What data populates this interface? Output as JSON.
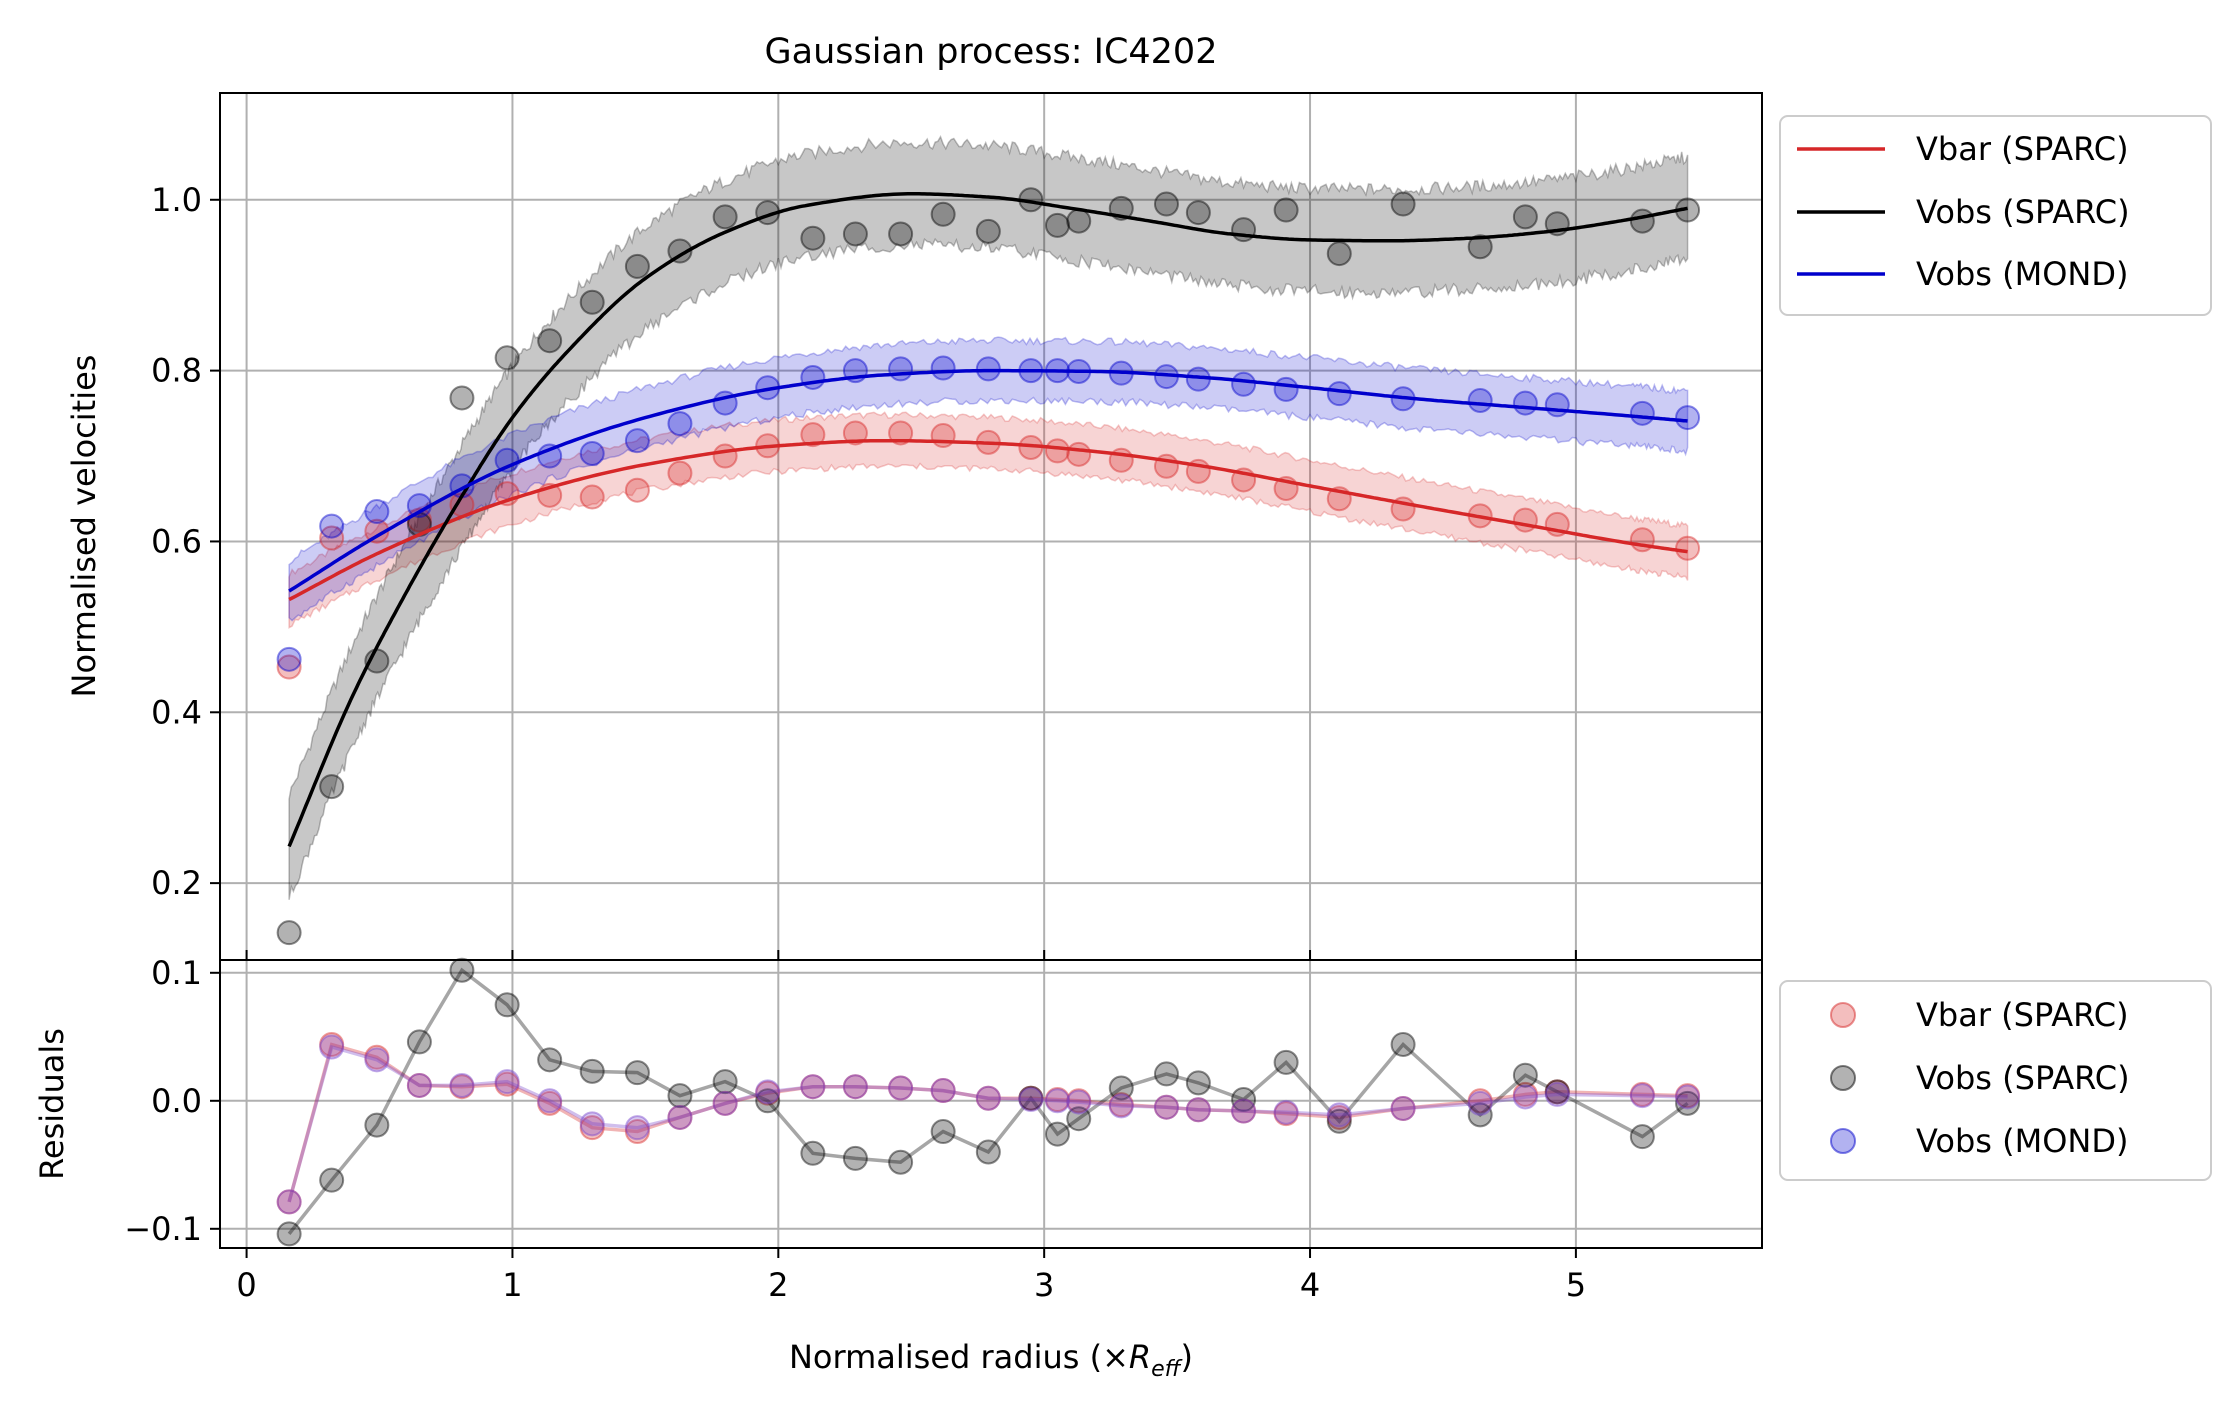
{
  "chart_data": [
    {
      "type": "scatter",
      "title": "Gaussian process: IC4202",
      "xlabel_prefix": "Normalised radius (×",
      "xlabel_var": "R",
      "xlabel_sub": "eff",
      "xlabel_suffix": ")",
      "ylabel": "Normalised velocities",
      "xlim": [
        -0.1,
        5.7
      ],
      "ylim": [
        0.11,
        1.125
      ],
      "xticks": [
        0,
        1,
        2,
        3,
        4,
        5
      ],
      "xtick_labels": [
        "0",
        "1",
        "2",
        "3",
        "4",
        "5"
      ],
      "yticks": [
        0.2,
        0.4,
        0.6,
        0.8,
        1.0
      ],
      "ytick_labels": [
        "0.2",
        "0.4",
        "0.6",
        "0.8",
        "1.0"
      ],
      "grid": true,
      "legend": {
        "placement": "outside-top-right",
        "entries": [
          "Vbar (SPARC)",
          "Vobs (SPARC)",
          "Vobs (MOND)"
        ]
      },
      "x": [
        0.16,
        0.32,
        0.49,
        0.65,
        0.81,
        0.98,
        1.14,
        1.3,
        1.47,
        1.63,
        1.8,
        1.96,
        2.13,
        2.29,
        2.46,
        2.62,
        2.79,
        2.95,
        3.05,
        3.13,
        3.29,
        3.46,
        3.58,
        3.75,
        3.91,
        4.11,
        4.35,
        4.64,
        4.81,
        4.93,
        5.25,
        5.42
      ],
      "series": [
        {
          "name": "Vbar (SPARC)",
          "color": "#d62728",
          "points": [
            0.453,
            0.604,
            0.612,
            0.625,
            0.643,
            0.656,
            0.654,
            0.652,
            0.66,
            0.68,
            0.7,
            0.712,
            0.725,
            0.727,
            0.727,
            0.724,
            0.716,
            0.71,
            0.706,
            0.702,
            0.695,
            0.688,
            0.682,
            0.672,
            0.662,
            0.65,
            0.638,
            0.63,
            0.625,
            0.62,
            0.602,
            0.592
          ],
          "fit_x": [
            0.16,
            0.5,
            1.0,
            1.5,
            2.0,
            2.4,
            2.8,
            3.2,
            3.6,
            4.0,
            4.4,
            4.8,
            5.2,
            5.42
          ],
          "fit": [
            0.532,
            0.587,
            0.65,
            0.69,
            0.712,
            0.718,
            0.715,
            0.705,
            0.688,
            0.665,
            0.642,
            0.62,
            0.598,
            0.588
          ],
          "band": 0.03
        },
        {
          "name": "Vobs (SPARC)",
          "color": "#000000",
          "points": [
            0.142,
            0.313,
            0.46,
            0.62,
            0.768,
            0.815,
            0.835,
            0.88,
            0.922,
            0.94,
            0.98,
            0.985,
            0.955,
            0.96,
            0.96,
            0.983,
            0.963,
            1.0,
            0.97,
            0.975,
            0.99,
            0.995,
            0.985,
            0.965,
            0.988,
            0.937,
            0.995,
            0.945,
            0.98,
            0.972,
            0.975,
            0.988
          ],
          "fit_x": [
            0.16,
            0.4,
            0.6,
            0.8,
            1.0,
            1.2,
            1.5,
            1.8,
            2.1,
            2.5,
            2.8,
            3.1,
            3.4,
            3.7,
            4.0,
            4.3,
            4.6,
            4.9,
            5.2,
            5.42
          ],
          "fit": [
            0.243,
            0.42,
            0.54,
            0.648,
            0.745,
            0.82,
            0.908,
            0.962,
            0.993,
            1.007,
            1.003,
            0.99,
            0.975,
            0.96,
            0.953,
            0.952,
            0.955,
            0.963,
            0.977,
            0.99
          ],
          "band": 0.06
        },
        {
          "name": "Vobs (MOND)",
          "color": "#0000cc",
          "points": [
            0.462,
            0.618,
            0.635,
            0.642,
            0.665,
            0.695,
            0.7,
            0.703,
            0.718,
            0.738,
            0.762,
            0.78,
            0.792,
            0.8,
            0.802,
            0.803,
            0.802,
            0.8,
            0.8,
            0.799,
            0.797,
            0.793,
            0.79,
            0.784,
            0.778,
            0.773,
            0.767,
            0.765,
            0.762,
            0.76,
            0.75,
            0.745
          ],
          "fit_x": [
            0.16,
            0.5,
            1.0,
            1.5,
            2.0,
            2.4,
            2.8,
            3.2,
            3.6,
            4.0,
            4.4,
            4.8,
            5.2,
            5.42
          ],
          "fit": [
            0.542,
            0.608,
            0.69,
            0.745,
            0.78,
            0.795,
            0.8,
            0.799,
            0.792,
            0.78,
            0.767,
            0.757,
            0.747,
            0.741
          ],
          "band": 0.035
        }
      ]
    },
    {
      "type": "line",
      "ylabel": "Residuals",
      "xlim": [
        -0.1,
        5.7
      ],
      "ylim": [
        -0.115,
        0.11
      ],
      "xticks": [
        0,
        1,
        2,
        3,
        4,
        5
      ],
      "yticks": [
        -0.1,
        0.0,
        0.1
      ],
      "ytick_labels": [
        "−0.1",
        "0.0",
        "0.1"
      ],
      "grid": true,
      "legend": {
        "placement": "outside-right",
        "entries": [
          "Vbar (SPARC)",
          "Vobs (SPARC)",
          "Vobs (MOND)"
        ]
      },
      "series": [
        {
          "name": "Vbar (SPARC)",
          "color": "#d62728",
          "values": [
            -0.079,
            0.044,
            0.034,
            0.012,
            0.011,
            0.013,
            -0.002,
            -0.021,
            -0.024,
            -0.013,
            -0.002,
            0.006,
            0.011,
            0.011,
            0.01,
            0.008,
            0.002,
            0.002,
            0.001,
            0.0,
            -0.003,
            -0.005,
            -0.007,
            -0.008,
            -0.01,
            -0.013,
            -0.006,
            0.0,
            0.005,
            0.007,
            0.005,
            0.004
          ]
        },
        {
          "name": "Vobs (SPARC)",
          "color": "#000000",
          "values": [
            -0.104,
            -0.062,
            -0.019,
            0.046,
            0.102,
            0.075,
            0.032,
            0.023,
            0.022,
            0.004,
            0.015,
            0.0,
            -0.041,
            -0.045,
            -0.048,
            -0.024,
            -0.04,
            0.002,
            -0.026,
            -0.014,
            0.01,
            0.021,
            0.014,
            0.001,
            0.03,
            -0.016,
            0.044,
            -0.011,
            0.02,
            0.007,
            -0.028,
            -0.002
          ]
        },
        {
          "name": "Vobs (MOND)",
          "color": "#7744cc",
          "values": [
            -0.079,
            0.042,
            0.032,
            0.012,
            0.012,
            0.015,
            0.0,
            -0.018,
            -0.021,
            -0.013,
            -0.002,
            0.007,
            0.011,
            0.011,
            0.01,
            0.008,
            0.002,
            0.001,
            0.0,
            -0.001,
            -0.004,
            -0.005,
            -0.007,
            -0.008,
            -0.009,
            -0.011,
            -0.006,
            -0.002,
            0.003,
            0.005,
            0.004,
            0.003
          ]
        }
      ]
    }
  ]
}
